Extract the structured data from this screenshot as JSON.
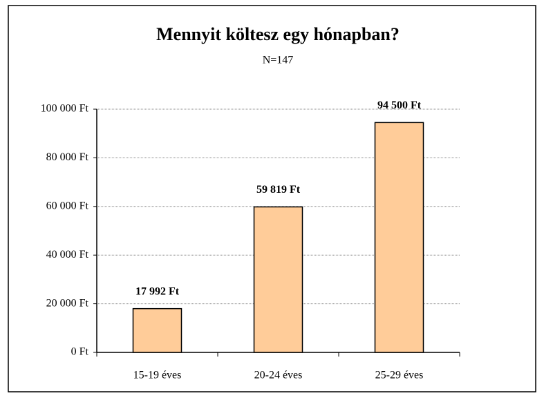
{
  "chart_data": {
    "type": "bar",
    "title": "Mennyit költesz egy hónapban?",
    "subtitle": "N=147",
    "categories": [
      "15-19 éves",
      "20-24 éves",
      "25-29 éves"
    ],
    "values": [
      17992,
      59819,
      94500
    ],
    "value_labels": [
      "17 992 Ft",
      "59 819 Ft",
      "94 500 Ft"
    ],
    "color": "#ffcc99",
    "ylim": [
      0,
      100000
    ],
    "yticks": [
      {
        "value": 0,
        "label": "0 Ft"
      },
      {
        "value": 20000,
        "label": "20 000 Ft"
      },
      {
        "value": 40000,
        "label": "40 000 Ft"
      },
      {
        "value": 60000,
        "label": "60 000 Ft"
      },
      {
        "value": 80000,
        "label": "80 000 Ft"
      },
      {
        "value": 100000,
        "label": "100 000 Ft"
      }
    ],
    "grid": true
  }
}
